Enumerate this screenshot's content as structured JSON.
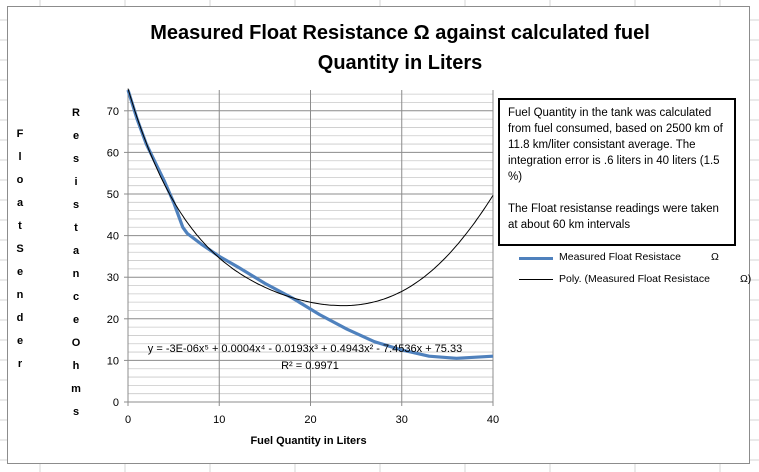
{
  "chart_data": {
    "type": "line",
    "title_line1": "Measured Float Resistance  Ω against calculated fuel",
    "title_line2": "Quantity in Liters",
    "xlabel": "Fuel Quantity in Liters",
    "ylabel_outer": "FloatSender",
    "ylabel_inner": "ResistanceOhms",
    "xlim": [
      0,
      40
    ],
    "ylim": [
      0,
      75
    ],
    "x_ticks": [
      0,
      10,
      20,
      30,
      40
    ],
    "y_ticks": [
      0,
      10,
      20,
      30,
      40,
      50,
      60,
      70
    ],
    "series": [
      {
        "name": "Measured Float Resistace",
        "symbol": "Ω",
        "color": "#4f81bd",
        "x": [
          0,
          1,
          2,
          3,
          4,
          5,
          6,
          6.5,
          8,
          10,
          12,
          15,
          18,
          21,
          24,
          27,
          30,
          33,
          36,
          40
        ],
        "y": [
          75,
          68,
          62,
          57.5,
          53,
          48,
          42,
          40.5,
          38,
          35,
          32.5,
          28.5,
          25,
          21,
          17.5,
          14.5,
          12.5,
          11,
          10.5,
          11
        ]
      },
      {
        "name": "Poly. (Measured Float Resistace",
        "symbol": "Ω)",
        "color": "#000000",
        "poly_coeffs": [
          75.33,
          -7.4536,
          0.4943,
          -0.0193,
          0.0004,
          -3e-06
        ]
      }
    ],
    "trend_equation": "y = -3E-06x⁵ + 0.0004x⁴ - 0.0193x³ + 0.4943x² - 7.4536x + 75.33",
    "r_squared": "R² = 0.9971"
  },
  "text_box": {
    "para1": "Fuel Quantity in the tank was calculated from fuel consumed, based on 2500 km  of 11.8 km/liter consistant average. The integration error is .6 liters in 40 liters (1.5 %)",
    "para2": "The Float resistanse readings were taken at about 60 km intervals"
  }
}
